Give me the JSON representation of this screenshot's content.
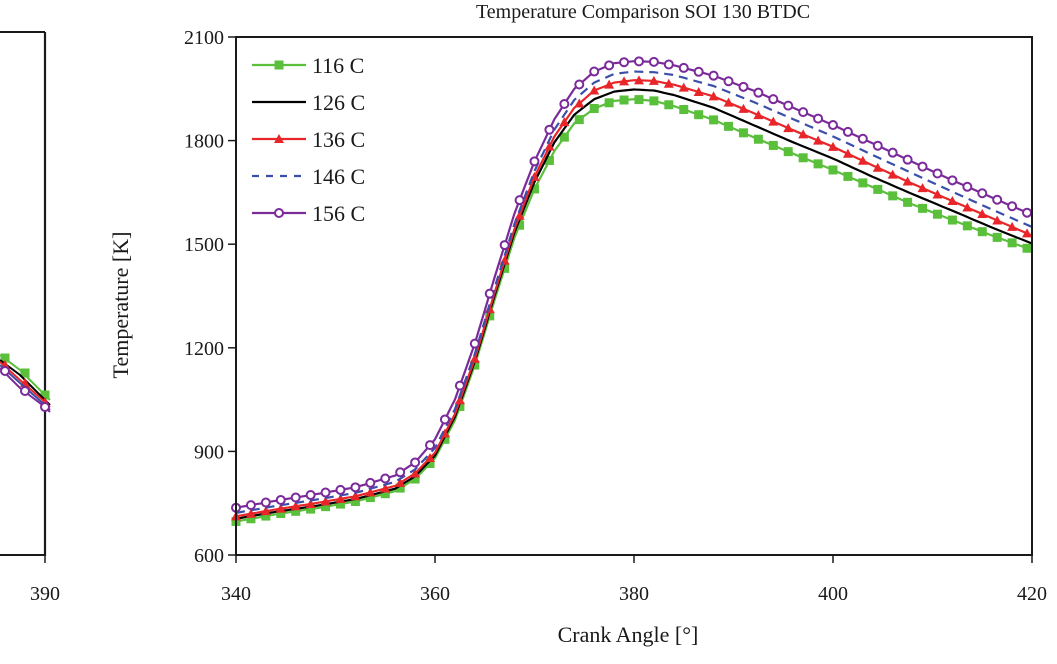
{
  "chart_data": [
    {
      "type": "line",
      "panel": "main",
      "title": "Temperature Comparison SOI 130 BTDC",
      "xlabel": "Crank Angle [°]",
      "ylabel": "Temperature  [K]",
      "xlim": [
        340,
        420
      ],
      "ylim": [
        600,
        2100
      ],
      "xticks": [
        340,
        360,
        380,
        400,
        420
      ],
      "yticks": [
        600,
        900,
        1200,
        1500,
        1800,
        2100
      ],
      "xtick_labels": [
        "340",
        "360",
        "380",
        "400",
        "420"
      ],
      "ytick_labels": [
        "600",
        "900",
        "1200",
        "1500",
        "1800",
        "2100"
      ],
      "grid": false,
      "legend_position": "top-left",
      "x": [
        340,
        344,
        348,
        352,
        356,
        358,
        360,
        362,
        364,
        366,
        368,
        370,
        372,
        374,
        376,
        378,
        380,
        382,
        384,
        388,
        392,
        396,
        400,
        404,
        408,
        412,
        416,
        420
      ],
      "series": [
        {
          "name": "116 C",
          "color": "#5abf3a",
          "marker": "square",
          "dash": "solid",
          "values": [
            697,
            718,
            735,
            755,
            785,
            820,
            880,
            990,
            1150,
            1340,
            1520,
            1660,
            1770,
            1850,
            1893,
            1915,
            1920,
            1915,
            1900,
            1860,
            1810,
            1762,
            1715,
            1665,
            1615,
            1570,
            1525,
            1483
          ]
        },
        {
          "name": "126 C",
          "color": "#000000",
          "marker": "none",
          "dash": "solid",
          "values": [
            705,
            725,
            742,
            762,
            792,
            828,
            888,
            1000,
            1160,
            1352,
            1535,
            1680,
            1795,
            1875,
            1920,
            1942,
            1948,
            1945,
            1932,
            1895,
            1845,
            1795,
            1748,
            1695,
            1645,
            1597,
            1548,
            1502
          ]
        },
        {
          "name": "136 C",
          "color": "#e8262a",
          "marker": "triangle",
          "dash": "solid",
          "values": [
            712,
            732,
            750,
            770,
            800,
            836,
            896,
            1008,
            1168,
            1360,
            1545,
            1695,
            1812,
            1895,
            1945,
            1968,
            1975,
            1973,
            1962,
            1928,
            1880,
            1830,
            1782,
            1728,
            1675,
            1625,
            1575,
            1525
          ]
        },
        {
          "name": "146 C",
          "color": "#3b4fa8",
          "marker": "none",
          "dash": "dashed",
          "values": [
            722,
            742,
            760,
            780,
            812,
            848,
            910,
            1022,
            1182,
            1375,
            1560,
            1712,
            1832,
            1918,
            1968,
            1993,
            2000,
            1998,
            1990,
            1958,
            1912,
            1862,
            1812,
            1758,
            1705,
            1652,
            1600,
            1550
          ]
        },
        {
          "name": "156 C",
          "color": "#7b2a9a",
          "marker": "open-circle",
          "dash": "solid",
          "values": [
            737,
            757,
            776,
            796,
            830,
            868,
            935,
            1050,
            1212,
            1405,
            1590,
            1740,
            1862,
            1950,
            2000,
            2024,
            2030,
            2028,
            2018,
            1988,
            1945,
            1895,
            1845,
            1792,
            1738,
            1685,
            1635,
            1585
          ]
        }
      ]
    },
    {
      "type": "line",
      "panel": "left-partial",
      "title": "",
      "xlabel": "",
      "ylabel": "",
      "xticks": [
        390
      ],
      "xtick_labels": [
        "390"
      ],
      "grid": false,
      "note": "Partially visible neighbouring plot; only the right edge is shown",
      "series": [
        {
          "name": "116 C",
          "color": "#5abf3a",
          "marker": "square"
        },
        {
          "name": "126 C",
          "color": "#000000",
          "marker": "none"
        },
        {
          "name": "136 C",
          "color": "#e8262a",
          "marker": "triangle"
        },
        {
          "name": "146 C",
          "color": "#3b4fa8",
          "marker": "none"
        },
        {
          "name": "156 C",
          "color": "#7b2a9a",
          "marker": "open-circle"
        }
      ]
    }
  ]
}
